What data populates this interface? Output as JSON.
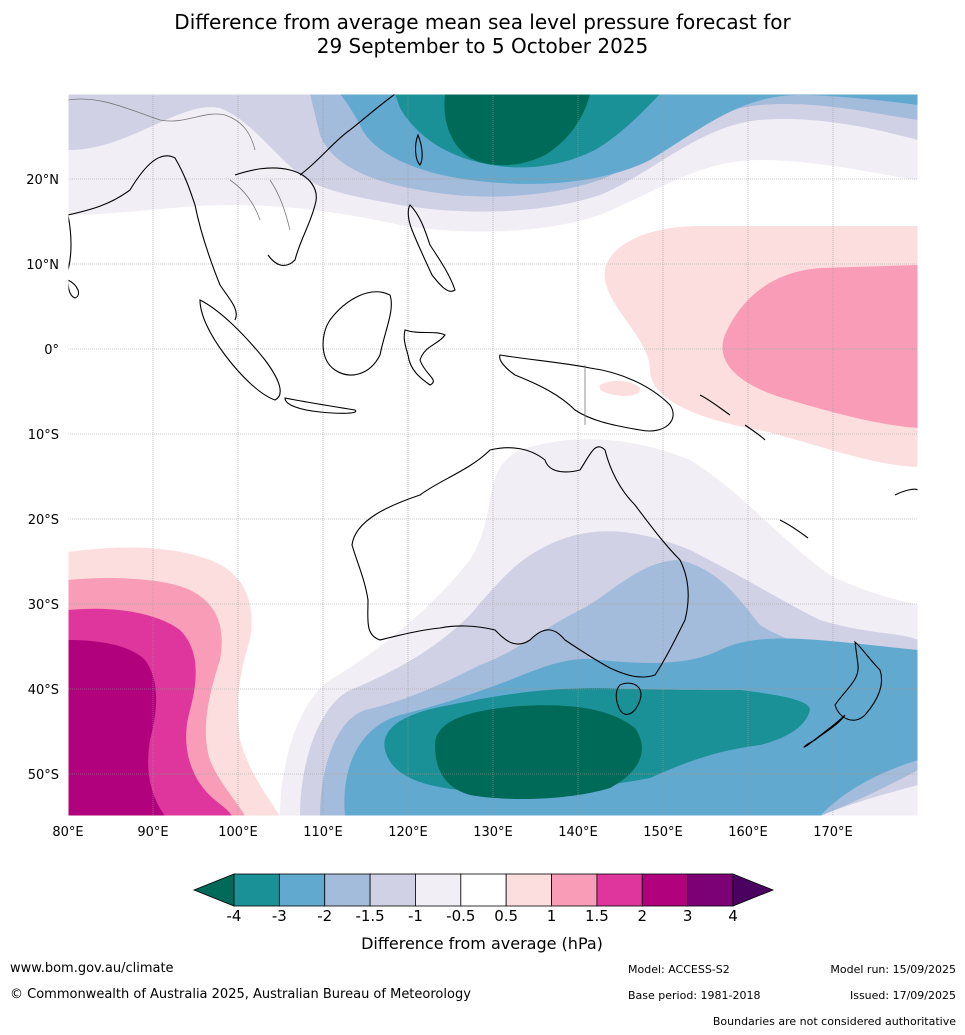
{
  "title": {
    "line1": "Difference from average mean sea level pressure forecast for",
    "line2": "29 September to 5 October 2025"
  },
  "map": {
    "region": "Indo-Pacific and Australia",
    "lon_ticks": [
      "80°E",
      "90°E",
      "100°E",
      "110°E",
      "120°E",
      "130°E",
      "140°E",
      "150°E",
      "160°E",
      "170°E"
    ],
    "lat_ticks": [
      "20°N",
      "10°N",
      "0°",
      "10°S",
      "20°S",
      "30°S",
      "40°S",
      "50°S"
    ],
    "anomaly_regions": [
      {
        "name": "north-pacific-low",
        "min_hpa": -4
      },
      {
        "name": "southern-ocean-low",
        "min_hpa": -4
      },
      {
        "name": "western-pacific-high",
        "max_hpa": 1.5
      },
      {
        "name": "southern-indian-ocean-high",
        "max_hpa": 3
      }
    ]
  },
  "colorbar": {
    "colors": [
      "#006a59",
      "#1a9196",
      "#62a9cf",
      "#a4bcdb",
      "#d1d1e6",
      "#f2eef5",
      "#ffffff",
      "#fddede",
      "#f99cb7",
      "#de369c",
      "#b1017d",
      "#7b0175",
      "#4a0160"
    ],
    "labels": [
      "-4",
      "-3",
      "-2",
      "-1.5",
      "-1",
      "-0.5",
      "0.5",
      "1",
      "1.5",
      "2",
      "3",
      "4"
    ],
    "title": "Difference from average (hPa)"
  },
  "footer": {
    "website": "www.bom.gov.au/climate",
    "copyright": "© Commonwealth of Australia 2025, Australian Bureau of Meteorology",
    "model": "Model: ACCESS-S2",
    "base_period": "Base period: 1981-2018",
    "model_run": "Model run: 15/09/2025",
    "issued": "Issued: 17/09/2025",
    "disclaimer": "Boundaries are not considered authoritative"
  }
}
